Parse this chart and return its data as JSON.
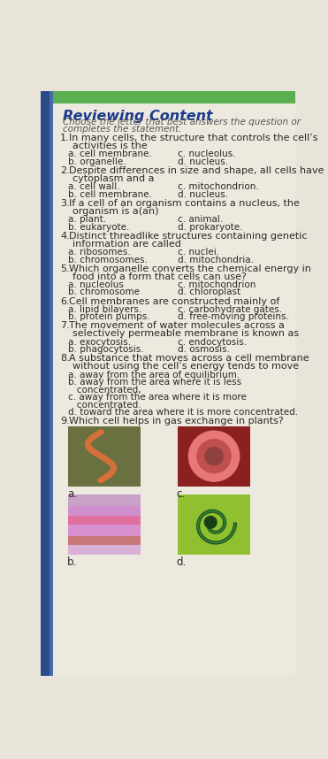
{
  "title": "Reviewing Content",
  "subtitle_line1": "Choose the letter that best answers the question or",
  "subtitle_line2": "completes the statement.",
  "bg_color": "#e8e4da",
  "left_margin_color": "#3a5a8a",
  "left_margin2_color": "#2a4a7a",
  "header_bg": "#5ab050",
  "title_color": "#1a3a8a",
  "body_color": "#2a2a2a",
  "questions": [
    {
      "num": "1.",
      "text": "In many cells, the structure that controls the cell’s\nactivities is the",
      "options": [
        [
          "a. cell membrane.",
          "c. nucleolus."
        ],
        [
          "b. organelle.",
          "d. nucleus."
        ]
      ]
    },
    {
      "num": "2.",
      "text": "Despite differences in size and shape, all cells have\ncytoplasm and a",
      "options": [
        [
          "a. cell wall.",
          "c. mitochondrion."
        ],
        [
          "b. cell membrane.",
          "d. nucleus."
        ]
      ]
    },
    {
      "num": "3.",
      "text": "If a cell of an organism contains a nucleus, the\norganism is a(an)",
      "options": [
        [
          "a. plant.",
          "c. animal."
        ],
        [
          "b. eukaryote.",
          "d. prokaryote."
        ]
      ]
    },
    {
      "num": "4.",
      "text": "Distinct threadlike structures containing genetic\ninformation are called",
      "options": [
        [
          "a. ribosomes.",
          "c. nuclei."
        ],
        [
          "b. chromosomes.",
          "d. mitochondria."
        ]
      ]
    },
    {
      "num": "5.",
      "text": "Which organelle converts the chemical energy in\nfood into a form that cells can use?",
      "options": [
        [
          "a. nucleolus",
          "c. mitochondrion"
        ],
        [
          "b. chromosome",
          "d. chloroplast"
        ]
      ]
    },
    {
      "num": "6.",
      "text": "Cell membranes are constructed mainly of",
      "options": [
        [
          "a. lipid bilayers.",
          "c. carbohydrate gates."
        ],
        [
          "b. protein pumps.",
          "d. free-moving proteins."
        ]
      ]
    },
    {
      "num": "7.",
      "text": "The movement of water molecules across a\nselectively permeable membrane is known as",
      "options": [
        [
          "a. exocytosis.",
          "c. endocytosis."
        ],
        [
          "b. phagocytosis.",
          "d. osmosis."
        ]
      ]
    },
    {
      "num": "8.",
      "text": "A substance that moves across a cell membrane\nwithout using the cell’s energy tends to move",
      "options_single": [
        "a. away from the area of equilibrium.",
        "b. away from the area where it is less",
        "   concentrated,",
        "c. away from the area where it is more",
        "   concentrated.",
        "d. toward the area where it is more concentrated."
      ]
    },
    {
      "num": "9.",
      "text": "Which cell helps in gas exchange in plants?",
      "has_images": true
    }
  ]
}
